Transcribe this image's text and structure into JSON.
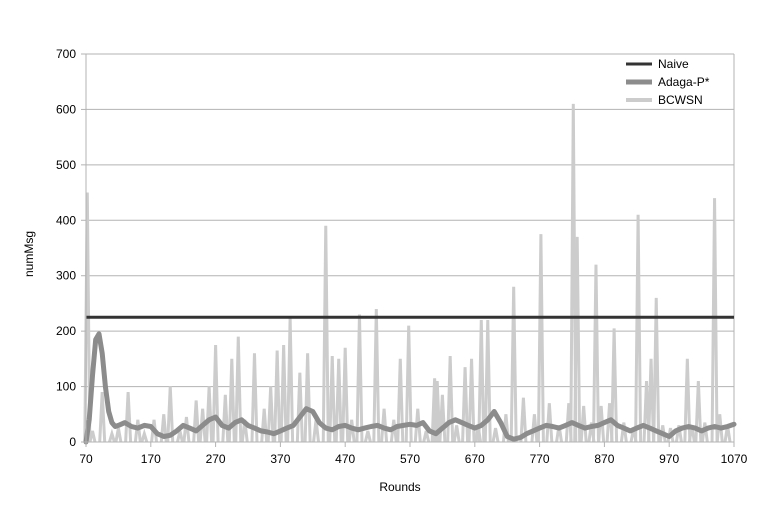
{
  "chart_data": {
    "type": "line",
    "title": "",
    "xlabel": "Rounds",
    "ylabel": "numMsg",
    "xlim": [
      70,
      1070
    ],
    "ylim": [
      0,
      700
    ],
    "xticks": [
      70,
      170,
      270,
      370,
      470,
      570,
      670,
      770,
      870,
      970,
      1070
    ],
    "yticks": [
      0,
      100,
      200,
      300,
      400,
      500,
      600,
      700
    ],
    "grid": "horizontal",
    "legend_position": "top-right",
    "colors": {
      "Naive": "#333333",
      "Adaga-P*": "#8c8c8c",
      "BCWSN": "#cccccc"
    },
    "series": [
      {
        "name": "Naive",
        "x": [
          70,
          1070
        ],
        "y": [
          225,
          225
        ]
      },
      {
        "name": "Adaga-P*",
        "x": [
          70,
          75,
          80,
          85,
          90,
          95,
          100,
          105,
          110,
          115,
          120,
          130,
          140,
          150,
          160,
          170,
          180,
          190,
          200,
          210,
          220,
          230,
          240,
          250,
          260,
          270,
          280,
          290,
          300,
          310,
          320,
          330,
          340,
          350,
          360,
          370,
          380,
          390,
          400,
          410,
          420,
          430,
          440,
          450,
          460,
          470,
          480,
          490,
          500,
          510,
          520,
          530,
          540,
          550,
          560,
          570,
          580,
          590,
          600,
          610,
          620,
          630,
          640,
          650,
          660,
          670,
          680,
          690,
          700,
          710,
          720,
          730,
          740,
          750,
          760,
          770,
          780,
          790,
          800,
          810,
          820,
          830,
          840,
          850,
          860,
          870,
          880,
          890,
          900,
          910,
          920,
          930,
          940,
          950,
          960,
          970,
          980,
          990,
          1000,
          1010,
          1020,
          1030,
          1040,
          1050,
          1060,
          1070
        ],
        "y": [
          0,
          40,
          120,
          185,
          195,
          160,
          100,
          55,
          35,
          28,
          30,
          35,
          28,
          25,
          30,
          28,
          15,
          10,
          12,
          20,
          30,
          25,
          20,
          30,
          40,
          45,
          30,
          25,
          35,
          40,
          30,
          25,
          20,
          18,
          15,
          20,
          25,
          30,
          45,
          60,
          55,
          35,
          25,
          22,
          28,
          30,
          25,
          22,
          25,
          28,
          30,
          25,
          22,
          28,
          30,
          32,
          30,
          35,
          20,
          15,
          25,
          35,
          40,
          35,
          30,
          25,
          30,
          40,
          55,
          35,
          10,
          5,
          8,
          15,
          20,
          25,
          30,
          28,
          25,
          30,
          35,
          30,
          25,
          28,
          30,
          35,
          40,
          30,
          25,
          20,
          25,
          30,
          25,
          20,
          15,
          10,
          20,
          25,
          28,
          25,
          20,
          25,
          28,
          25,
          28,
          32
        ]
      },
      {
        "name": "BCWSN",
        "x": [
          72,
          80,
          95,
          110,
          120,
          135,
          150,
          160,
          175,
          190,
          200,
          215,
          225,
          240,
          250,
          260,
          270,
          285,
          295,
          305,
          315,
          330,
          345,
          355,
          365,
          375,
          385,
          400,
          412,
          425,
          440,
          450,
          460,
          470,
          480,
          492,
          505,
          518,
          530,
          545,
          555,
          568,
          582,
          595,
          608,
          612,
          620,
          632,
          642,
          655,
          665,
          675,
          680,
          690,
          702,
          718,
          730,
          745,
          762,
          772,
          785,
          800,
          815,
          822,
          828,
          838,
          850,
          857,
          865,
          878,
          885,
          900,
          915,
          922,
          935,
          942,
          950,
          960,
          972,
          985,
          998,
          1005,
          1015,
          1025,
          1040,
          1048,
          1060
        ],
        "y": [
          450,
          20,
          90,
          15,
          25,
          90,
          40,
          15,
          40,
          50,
          100,
          20,
          45,
          75,
          60,
          100,
          175,
          85,
          150,
          190,
          40,
          160,
          60,
          100,
          165,
          175,
          225,
          125,
          160,
          40,
          390,
          155,
          150,
          170,
          40,
          230,
          20,
          240,
          60,
          40,
          150,
          210,
          60,
          20,
          115,
          110,
          85,
          155,
          30,
          135,
          150,
          30,
          220,
          220,
          25,
          50,
          280,
          80,
          50,
          375,
          70,
          30,
          70,
          610,
          370,
          65,
          35,
          320,
          65,
          70,
          205,
          35,
          25,
          410,
          110,
          150,
          260,
          30,
          25,
          30,
          150,
          30,
          110,
          35,
          440,
          50,
          30
        ]
      }
    ]
  }
}
